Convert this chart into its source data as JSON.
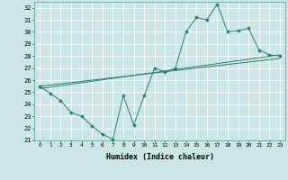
{
  "xlabel": "Humidex (Indice chaleur)",
  "bg_color": "#cce5e5",
  "grid_color": "#ffffff",
  "line_color": "#2d7f6e",
  "xlim": [
    -0.5,
    23.5
  ],
  "ylim": [
    21,
    32.5
  ],
  "yticks": [
    21,
    22,
    23,
    24,
    25,
    26,
    27,
    28,
    29,
    30,
    31,
    32
  ],
  "xticks": [
    0,
    1,
    2,
    3,
    4,
    5,
    6,
    7,
    8,
    9,
    10,
    11,
    12,
    13,
    14,
    15,
    16,
    17,
    18,
    19,
    20,
    21,
    22,
    23
  ],
  "line1_x": [
    0,
    1,
    2,
    3,
    4,
    5,
    6,
    7,
    8,
    9,
    10,
    11,
    12,
    13,
    14,
    15,
    16,
    17,
    18,
    19,
    20,
    21,
    22,
    23
  ],
  "line1_y": [
    25.5,
    24.9,
    24.3,
    23.3,
    23.0,
    22.2,
    21.5,
    21.1,
    24.7,
    22.3,
    24.7,
    27.0,
    26.7,
    27.0,
    30.0,
    31.2,
    31.0,
    32.3,
    30.0,
    30.1,
    30.3,
    28.5,
    28.1,
    28.0
  ],
  "line2_x": [
    0,
    23
  ],
  "line2_y": [
    25.3,
    28.1
  ],
  "line3_x": [
    0,
    23
  ],
  "line3_y": [
    25.5,
    27.8
  ]
}
